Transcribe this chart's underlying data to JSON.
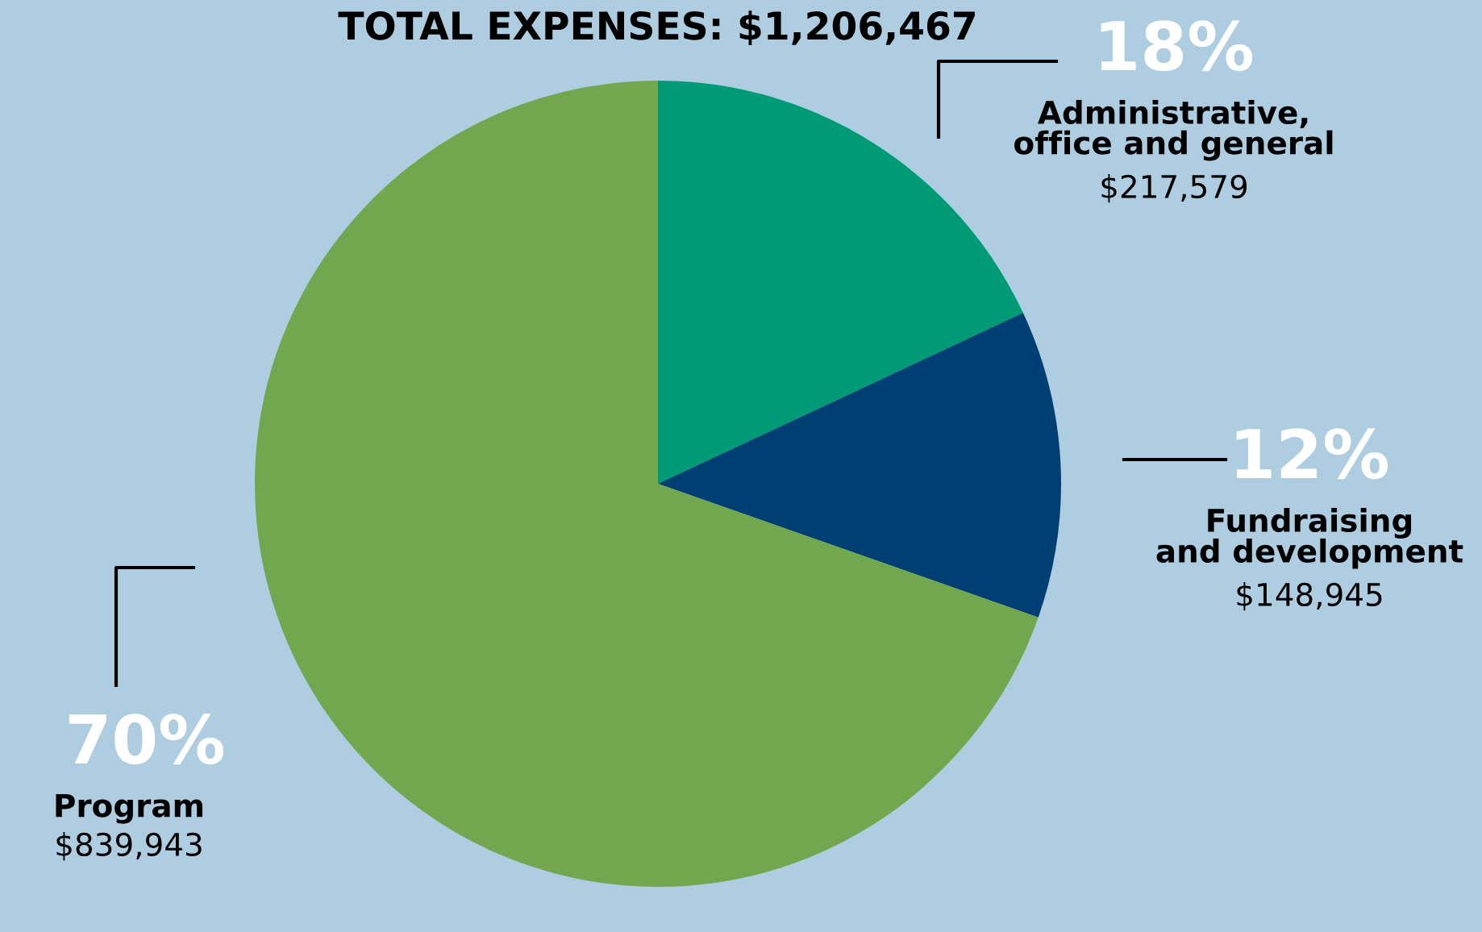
{
  "chart_data": {
    "type": "pie",
    "title": "TOTAL EXPENSES: $1,206,467",
    "categories": [
      "Administrative,\noffice and general",
      "Fundraising\nand development",
      "Program"
    ],
    "values": [
      217579,
      148945,
      839943
    ],
    "colors": [
      "#009a77",
      "#003f74",
      "#71a84f"
    ],
    "value_labels": [
      "$217,579",
      "$148,945",
      "$839,943"
    ],
    "annotations": [
      "18%",
      "12%",
      "70%"
    ]
  }
}
